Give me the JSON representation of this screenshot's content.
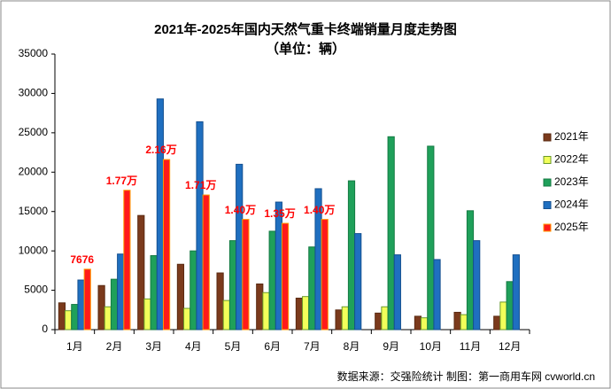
{
  "chart_data": {
    "type": "bar",
    "title": "2021年-2025年国内天然气重卡终端销量月度走势图",
    "subtitle": "（单位：辆）",
    "source": "数据来源：交强险统计   制图：第一商用车网 cvworld.cn",
    "categories": [
      "1月",
      "2月",
      "3月",
      "4月",
      "5月",
      "6月",
      "7月",
      "8月",
      "9月",
      "10月",
      "11月",
      "12月"
    ],
    "series": [
      {
        "name": "2021年",
        "color": "#7b3a1c",
        "edgecolor": "#5a2a12",
        "values": [
          3400,
          5600,
          14500,
          8300,
          7200,
          5800,
          4000,
          2500,
          2100,
          1700,
          2200,
          1700
        ]
      },
      {
        "name": "2022年",
        "color": "#f2ff5a",
        "edgecolor": "#6a9a2a",
        "values": [
          2400,
          2900,
          3900,
          2700,
          3700,
          4700,
          4200,
          2900,
          2900,
          1500,
          1900,
          3500
        ]
      },
      {
        "name": "2023年",
        "color": "#1fa05a",
        "edgecolor": "#157a43",
        "values": [
          3200,
          6400,
          9400,
          10000,
          11300,
          12500,
          10500,
          18900,
          24500,
          23300,
          15100,
          6100
        ]
      },
      {
        "name": "2024年",
        "color": "#1f6fc0",
        "edgecolor": "#155090",
        "values": [
          6300,
          9600,
          29300,
          26400,
          21000,
          16200,
          17900,
          12200,
          9500,
          8900,
          11300,
          9500
        ]
      },
      {
        "name": "2025年",
        "color": "#ff1a1a",
        "edgecolor": "#ff9900",
        "values": [
          7676,
          17700,
          21600,
          17100,
          14000,
          13500,
          14000,
          null,
          null,
          null,
          null,
          null
        ],
        "value_labels": [
          "7676",
          "1.77万",
          "2.16万",
          "1.71万",
          "1.40万",
          "1.35万",
          "1.40万",
          null,
          null,
          null,
          null,
          null
        ]
      }
    ],
    "ylim": [
      0,
      35000
    ],
    "yticks": [
      0,
      5000,
      10000,
      15000,
      20000,
      25000,
      30000,
      35000
    ],
    "grid": false,
    "legend": "right"
  }
}
